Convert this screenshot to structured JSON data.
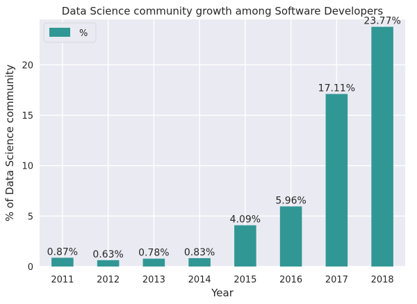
{
  "chart_data": {
    "type": "bar",
    "title": "Data Science community growth among Software Developers",
    "xlabel": "Year",
    "ylabel": "% of Data Science community",
    "categories": [
      "2011",
      "2012",
      "2013",
      "2014",
      "2015",
      "2016",
      "2017",
      "2018"
    ],
    "series": [
      {
        "name": "%",
        "values": [
          0.87,
          0.63,
          0.78,
          0.83,
          4.09,
          5.96,
          17.11,
          23.77
        ],
        "labels": [
          "0.87%",
          "0.63%",
          "0.78%",
          "0.83%",
          "4.09%",
          "5.96%",
          "17.11%",
          "23.77%"
        ],
        "color": "#319795"
      }
    ],
    "yticks": [
      "0",
      "5",
      "10",
      "15",
      "20"
    ],
    "ylim": [
      0,
      24.5
    ],
    "grid": true,
    "legend": "top-left",
    "background": "#eaeaf2",
    "grid_color": "#ffffff"
  }
}
